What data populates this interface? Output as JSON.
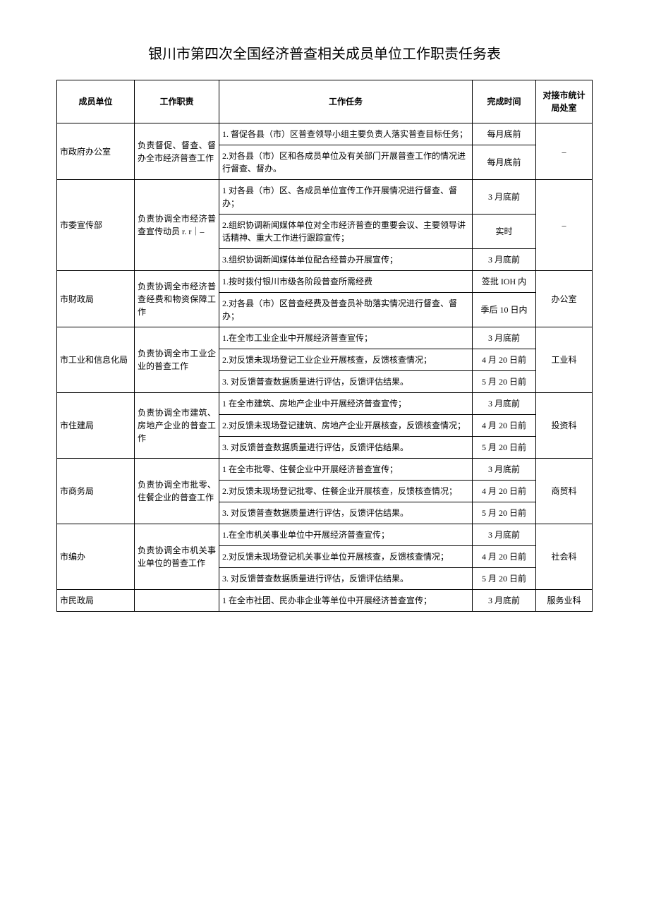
{
  "title": "银川市第四次全国经济普查相关成员单位工作职责任务表",
  "headers": {
    "unit": "成员单位",
    "duty": "工作职责",
    "task": "工作任务",
    "time": "完成时间",
    "dept": "对接市统计局处室"
  },
  "rows": [
    {
      "unit": "市政府办公室",
      "duty": "负责督促、督查、督办全市经济普查工作",
      "dept": "–",
      "tasks": [
        {
          "task": "1. 督促各县（市）区普查领导小组主要负责人落实普查目标任务；",
          "time": "每月底前"
        },
        {
          "task": "2.对各县（市）区和各成员单位及有关部门开展普查工作的情况进行督查、督办。",
          "time": "每月底前"
        }
      ]
    },
    {
      "unit": "市委宣传部",
      "duty": "负责协调全市经济普查宣传动员 r. r｜–",
      "dept": "–",
      "tasks": [
        {
          "task": "1 对各县（市）区、各成员单位宣传工作开展情况进行督查、督办；",
          "time": "3 月底前"
        },
        {
          "task": "2.组织协调新闻媒体单位对全市经济普查的重要会议、主要领导讲话精神、重大工作进行跟踪宣传；",
          "time": "实时"
        },
        {
          "task": "3.组织协调新闻媒体单位配合经普办开展宣传；",
          "time": "3 月底前"
        }
      ]
    },
    {
      "unit": "市财政局",
      "duty": "负责协调全市经济普查经费和物资保障工作",
      "dept": "办公室",
      "tasks": [
        {
          "task": "1.按时拨付银川市级各阶段普查所需经费",
          "time": "签批 IOH 内"
        },
        {
          "task": "2.对各县（市）区普查经费及普查员补助落实情况进行督查、督办；",
          "time": "季后 10 日内"
        }
      ]
    },
    {
      "unit": "市工业和信息化局",
      "duty": "负责协调全市工业企业的普查工作",
      "dept": "工业科",
      "tasks": [
        {
          "task": "1.在全市工业企业中开展经济普查宣传；",
          "time": "3 月底前"
        },
        {
          "task": "2.对反馈未现场登记工业企业开展核查，反馈核查情况；",
          "time": "4 月 20 日前"
        },
        {
          "task": "3. 对反馈普查数据质量进行评估，反馈评估结果。",
          "time": "5 月 20 日前"
        }
      ]
    },
    {
      "unit": "市住建局",
      "duty": "负责协调全市建筑、房地产企业的普查工作",
      "dept": "投资科",
      "tasks": [
        {
          "task": "1 在全市建筑、房地产企业中开展经济普查宣传；",
          "time": "3 月底前"
        },
        {
          "task": "2.对反馈未现场登记建筑、房地产企业开展核查，反馈核查情况；",
          "time": "4 月 20 日前"
        },
        {
          "task": "3. 对反馈普查数据质量进行评估，反馈评估结果。",
          "time": "5 月 20 日前"
        }
      ]
    },
    {
      "unit": "市商务局",
      "duty": "负责协调全市批零、住餐企业的普查工作",
      "dept": "商贸科",
      "tasks": [
        {
          "task": "1 在全市批零、住餐企业中开展经济普查宣传；",
          "time": "3 月底前"
        },
        {
          "task": "2.对反馈未现场登记批零、住餐企业开展核查，反馈核查情况；",
          "time": "4 月 20 日前"
        },
        {
          "task": "3. 对反馈普查数据质量进行评估，反馈评估结果。",
          "time": "5 月 20 日前"
        }
      ]
    },
    {
      "unit": "市编办",
      "duty": "负责协调全市机关事业单位的普查工作",
      "dept": "社会科",
      "tasks": [
        {
          "task": "1.在全市机关事业单位中开展经济普查宣传；",
          "time": "3 月底前"
        },
        {
          "task": "2.对反馈未现场登记机关事业单位开展核查，反馈核查情况；",
          "time": "4 月 20 日前"
        },
        {
          "task": "3. 对反馈普查数据质量进行评估，反馈评估结果。",
          "time": "5 月 20 日前"
        }
      ]
    },
    {
      "unit": "市民政局",
      "duty": "",
      "dept": "服务业科",
      "tasks": [
        {
          "task": "1 在全市社团、民办非企业等单位中开展经济普查宣传；",
          "time": "3 月底前"
        }
      ]
    }
  ]
}
